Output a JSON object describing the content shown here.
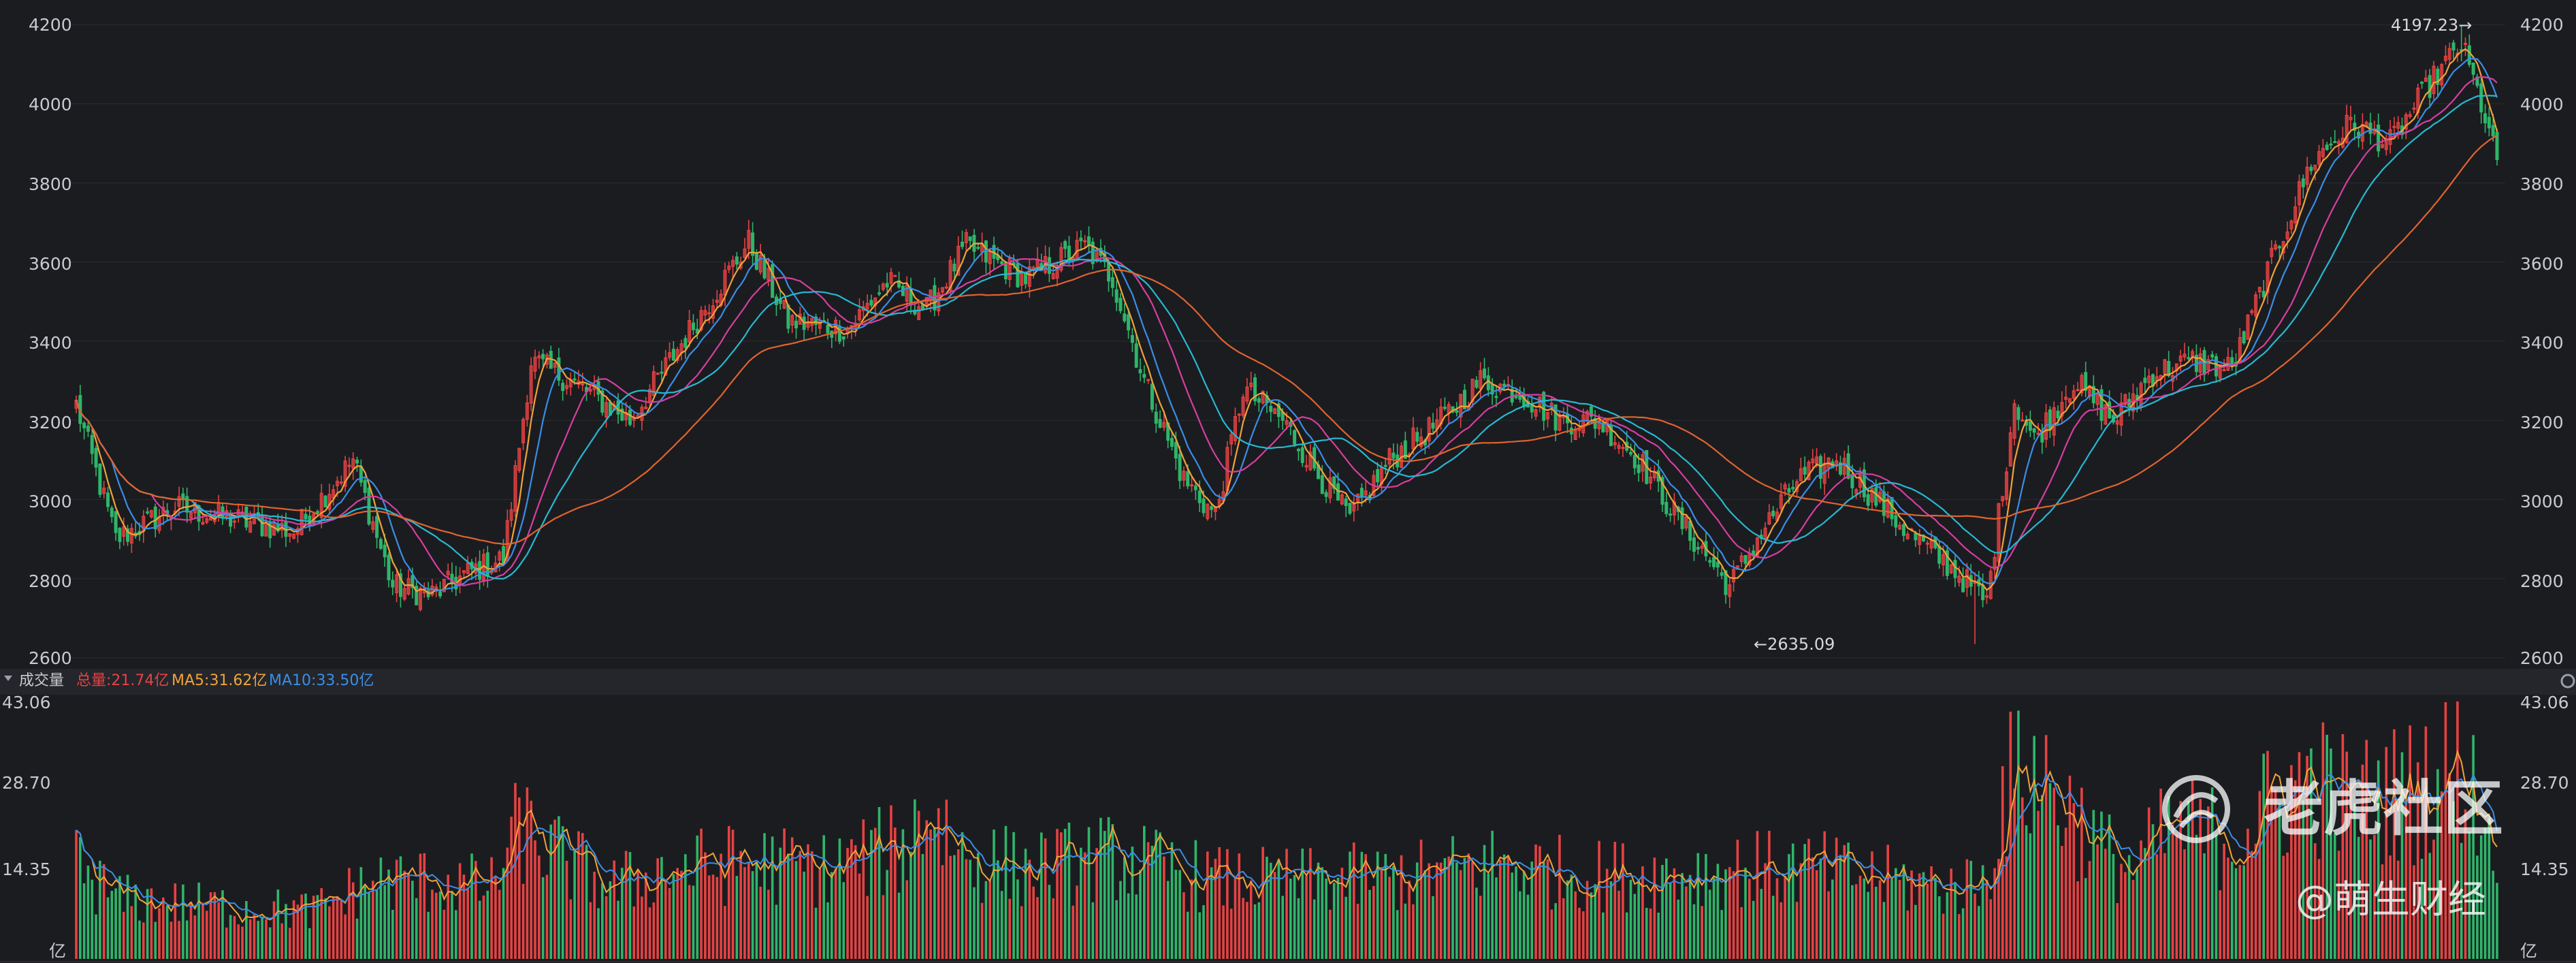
{
  "colors": {
    "background": "#1b1c20",
    "up": "#e64242",
    "down": "#2fb56a",
    "ma5": "#f0a33a",
    "ma10": "#3a8ee6",
    "ma20": "#d63f9f",
    "ma30": "#27b9d1",
    "ma60": "#e0642e",
    "grid": "#2a2c32"
  },
  "price_panel": {
    "y_ticks": [
      "4200",
      "4000",
      "3800",
      "3600",
      "3400",
      "3200",
      "3000",
      "2800",
      "2600"
    ],
    "high_annotation": "4197.23→",
    "low_annotation": "←2635.09"
  },
  "volume_panel": {
    "title": "成交量",
    "total_label": "总量:21.74亿",
    "ma5_label": "MA5:31.62亿",
    "ma10_label": "MA10:33.50亿",
    "y_ticks": [
      "43.06",
      "28.70",
      "14.35"
    ],
    "unit": "亿",
    "collapse_icon": "chevron-down-icon",
    "settings_icon": "gear-icon"
  },
  "watermark": {
    "brand": "老虎社区",
    "author": "@萌生财经",
    "logo_icon": "tiger-logo-icon"
  },
  "chart_data": [
    {
      "type": "candlestick",
      "title": "",
      "ylim": [
        2600,
        4200
      ],
      "high": 4197.23,
      "low": 2635.09,
      "moving_averages": [
        "MA5",
        "MA10",
        "MA20",
        "MA30",
        "MA60"
      ],
      "close_anchors": [
        [
          0,
          3240
        ],
        [
          10,
          2900
        ],
        [
          25,
          2980
        ],
        [
          40,
          2950
        ],
        [
          55,
          2920
        ],
        [
          70,
          3100
        ],
        [
          80,
          2780
        ],
        [
          90,
          2760
        ],
        [
          100,
          2820
        ],
        [
          108,
          2850
        ],
        [
          115,
          3350
        ],
        [
          125,
          3300
        ],
        [
          140,
          3200
        ],
        [
          150,
          3350
        ],
        [
          160,
          3500
        ],
        [
          170,
          3650
        ],
        [
          180,
          3450
        ],
        [
          195,
          3430
        ],
        [
          205,
          3550
        ],
        [
          215,
          3480
        ],
        [
          225,
          3640
        ],
        [
          240,
          3560
        ],
        [
          255,
          3640
        ],
        [
          262,
          3560
        ],
        [
          270,
          3300
        ],
        [
          280,
          3050
        ],
        [
          288,
          2960
        ],
        [
          295,
          3280
        ],
        [
          305,
          3200
        ],
        [
          315,
          3050
        ],
        [
          322,
          2950
        ],
        [
          332,
          3100
        ],
        [
          345,
          3200
        ],
        [
          355,
          3300
        ],
        [
          365,
          3270
        ],
        [
          375,
          3200
        ],
        [
          385,
          3200
        ],
        [
          395,
          3100
        ],
        [
          405,
          2950
        ],
        [
          418,
          2780
        ],
        [
          425,
          2900
        ],
        [
          435,
          3050
        ],
        [
          445,
          3100
        ],
        [
          455,
          3000
        ],
        [
          465,
          2900
        ],
        [
          475,
          2820
        ],
        [
          483,
          2740
        ],
        [
          490,
          3250
        ],
        [
          495,
          3150
        ],
        [
          505,
          3300
        ],
        [
          515,
          3200
        ],
        [
          525,
          3320
        ],
        [
          535,
          3350
        ],
        [
          545,
          3330
        ],
        [
          555,
          3600
        ],
        [
          565,
          3850
        ],
        [
          575,
          3950
        ],
        [
          585,
          3900
        ],
        [
          595,
          4050
        ],
        [
          603,
          4150
        ],
        [
          608,
          4000
        ],
        [
          612,
          3850
        ]
      ],
      "volume": {
        "unit": "亿",
        "ylim": [
          0,
          43.06
        ],
        "anchors": [
          [
            0,
            16
          ],
          [
            10,
            10
          ],
          [
            30,
            9
          ],
          [
            60,
            8
          ],
          [
            75,
            13
          ],
          [
            90,
            13
          ],
          [
            105,
            12
          ],
          [
            112,
            22
          ],
          [
            120,
            18
          ],
          [
            135,
            12
          ],
          [
            150,
            15
          ],
          [
            170,
            16
          ],
          [
            190,
            15
          ],
          [
            210,
            19
          ],
          [
            215,
            26
          ],
          [
            225,
            17
          ],
          [
            240,
            15
          ],
          [
            262,
            17
          ],
          [
            275,
            15
          ],
          [
            290,
            13
          ],
          [
            310,
            13
          ],
          [
            340,
            14
          ],
          [
            360,
            16
          ],
          [
            380,
            14
          ],
          [
            400,
            14
          ],
          [
            420,
            15
          ],
          [
            440,
            15
          ],
          [
            460,
            13
          ],
          [
            475,
            12
          ],
          [
            483,
            13
          ],
          [
            487,
            28
          ],
          [
            495,
            32
          ],
          [
            505,
            24
          ],
          [
            512,
            18
          ],
          [
            520,
            15
          ],
          [
            530,
            22
          ],
          [
            545,
            20
          ],
          [
            555,
            26
          ],
          [
            565,
            30
          ],
          [
            575,
            26
          ],
          [
            590,
            28
          ],
          [
            603,
            33
          ],
          [
            610,
            21
          ]
        ]
      }
    }
  ]
}
